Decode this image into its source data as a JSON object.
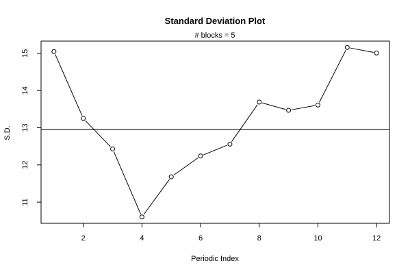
{
  "chart_data": {
    "type": "line",
    "title": "Standard Deviation Plot",
    "subtitle": "# blocks =  5",
    "xlabel": "Periodic Index",
    "ylabel": "S.D.",
    "x": [
      1,
      2,
      3,
      4,
      5,
      6,
      7,
      8,
      9,
      10,
      11,
      12
    ],
    "values": [
      15.05,
      13.25,
      12.43,
      10.6,
      11.68,
      12.24,
      12.56,
      13.69,
      13.47,
      13.61,
      15.16,
      15.01
    ],
    "reference_line": 12.95,
    "xlim": [
      0.56,
      12.44
    ],
    "ylim": [
      10.43,
      15.33
    ],
    "xticks": [
      2,
      4,
      6,
      8,
      10,
      12
    ],
    "yticks": [
      11,
      12,
      13,
      14,
      15
    ],
    "grid": false,
    "markers": "open-circle",
    "colors": {
      "line": "#000000",
      "marker_fill": "#ffffff"
    }
  }
}
